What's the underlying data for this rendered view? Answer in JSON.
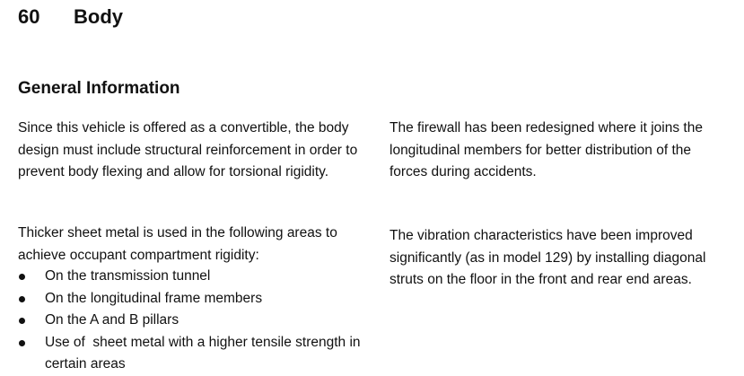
{
  "header": {
    "section_number": "60",
    "section_title": "Body"
  },
  "section_heading": "General Information",
  "left_column": {
    "paragraph_1": "Since this vehicle is offered as a convertible, the body design must include structural reinforcement in order to prevent body flexing and allow for torsional rigidity.",
    "paragraph_2": "Thicker sheet metal is used in the following areas to achieve occupant compartment rigidity:",
    "bullets": [
      "On the transmission tunnel",
      "On the longitudinal frame members",
      "On the A and B pillars",
      "Use of  sheet metal with a higher tensile strength in certain areas"
    ]
  },
  "right_column": {
    "paragraph_1": "The firewall has been redesigned where it joins the longitudinal members for better distribution of the forces during accidents.",
    "paragraph_2": "The vibration characteristics have been improved significantly (as in model 129) by installing diagonal struts on the floor in the front and rear end areas."
  }
}
